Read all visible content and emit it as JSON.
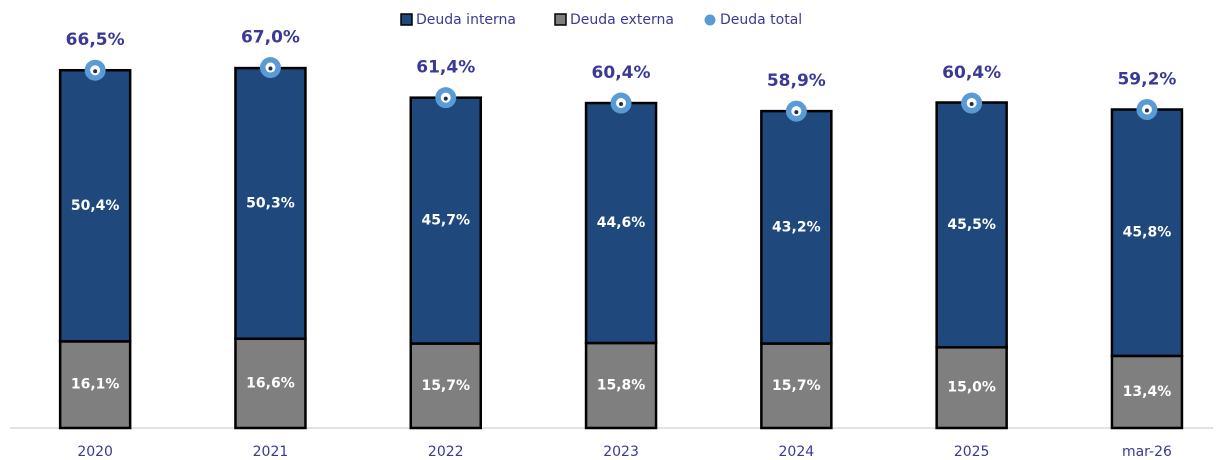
{
  "chart_data": {
    "type": "bar",
    "stacked": true,
    "categories": [
      "2020",
      "2021",
      "2022",
      "2023",
      "2024",
      "2025",
      "mar-26"
    ],
    "series": [
      {
        "name": "Deuda externa",
        "color": "#7f7f7f",
        "values": [
          16.1,
          16.6,
          15.7,
          15.8,
          15.7,
          15.0,
          13.4
        ],
        "value_labels": [
          "16,1%",
          "16,6%",
          "15,7%",
          "15,8%",
          "15,7%",
          "15,0%",
          "13,4%"
        ]
      },
      {
        "name": "Deuda interna",
        "color": "#1f497d",
        "values": [
          50.4,
          50.3,
          45.7,
          44.6,
          43.2,
          45.5,
          45.8
        ],
        "value_labels": [
          "50,4%",
          "50,3%",
          "45,7%",
          "44,6%",
          "43,2%",
          "45,5%",
          "45,8%"
        ]
      },
      {
        "name": "Deuda total",
        "color": "#5b9bd5",
        "type": "scatter",
        "values": [
          66.5,
          67.0,
          61.4,
          60.4,
          58.9,
          60.4,
          59.2
        ],
        "value_labels": [
          "66,5%",
          "67,0%",
          "61,4%",
          "60,4%",
          "58,9%",
          "60,4%",
          "59,2%"
        ]
      }
    ],
    "legend": "top"
  }
}
